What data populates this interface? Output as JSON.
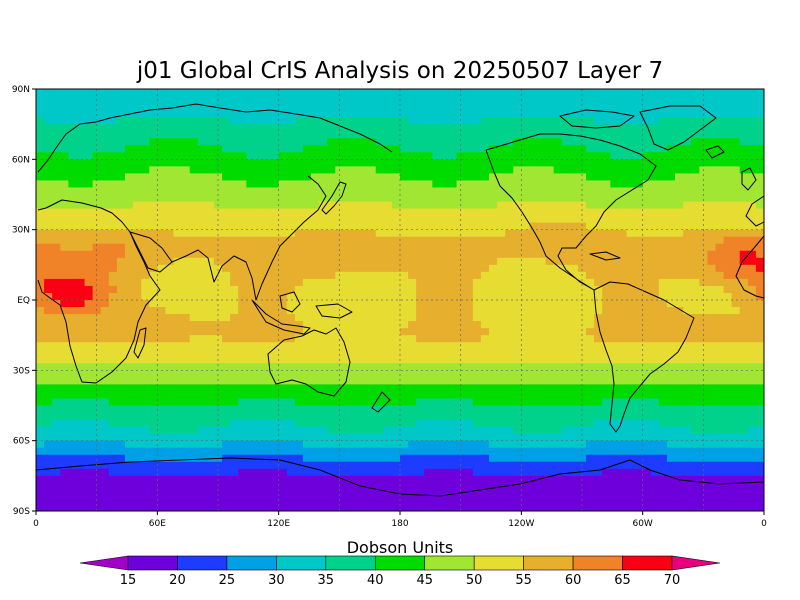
{
  "chart_data": {
    "type": "heatmap",
    "title": "j01 Global CrIS Analysis on 20250507 Layer 7",
    "units": "Dobson Units",
    "x_ticks": [
      "0",
      "60E",
      "120E",
      "180",
      "120W",
      "60W",
      "0"
    ],
    "y_ticks": [
      "90N",
      "60N",
      "30N",
      "EQ",
      "30S",
      "60S",
      "90S"
    ],
    "colorbar_levels": [
      15,
      20,
      25,
      30,
      35,
      40,
      45,
      50,
      55,
      60,
      65,
      70
    ],
    "colorbar_colors": [
      "#a000c8",
      "#6e00dc",
      "#1e3cff",
      "#00a0e6",
      "#00c8c8",
      "#00d28c",
      "#00dc00",
      "#a0e632",
      "#e6dc32",
      "#e6af2d",
      "#f08228",
      "#fa0014",
      "#e6007d"
    ],
    "latitude_bands": [
      {
        "lat": 90,
        "value": 35
      },
      {
        "lat": 82,
        "value": 33
      },
      {
        "lat": 75,
        "value": 36
      },
      {
        "lat": 65,
        "value": 40
      },
      {
        "lat": 55,
        "value": 44
      },
      {
        "lat": 45,
        "value": 48
      },
      {
        "lat": 35,
        "value": 52
      },
      {
        "lat": 25,
        "value": 56
      },
      {
        "lat": 15,
        "value": 55
      },
      {
        "lat": 5,
        "value": 54
      },
      {
        "lat": -5,
        "value": 54
      },
      {
        "lat": -15,
        "value": 55
      },
      {
        "lat": -22,
        "value": 53
      },
      {
        "lat": -30,
        "value": 49
      },
      {
        "lat": -38,
        "value": 44
      },
      {
        "lat": -46,
        "value": 39
      },
      {
        "lat": -54,
        "value": 35
      },
      {
        "lat": -62,
        "value": 30
      },
      {
        "lat": -70,
        "value": 23
      },
      {
        "lat": -78,
        "value": 18
      },
      {
        "lat": -90,
        "value": 17
      }
    ],
    "maxima": [
      {
        "lon": -10,
        "lat": 17,
        "value": 66
      },
      {
        "lon": 17,
        "lat": 3,
        "value": 66
      },
      {
        "lon": 40,
        "lat": 20,
        "value": 60
      },
      {
        "lon": -100,
        "lat": 27,
        "value": 58
      },
      {
        "lon": 150,
        "lat": 18,
        "value": 58
      },
      {
        "lon": 60,
        "lat": -10,
        "value": 58
      },
      {
        "lon": -30,
        "lat": -12,
        "value": 58
      }
    ]
  }
}
